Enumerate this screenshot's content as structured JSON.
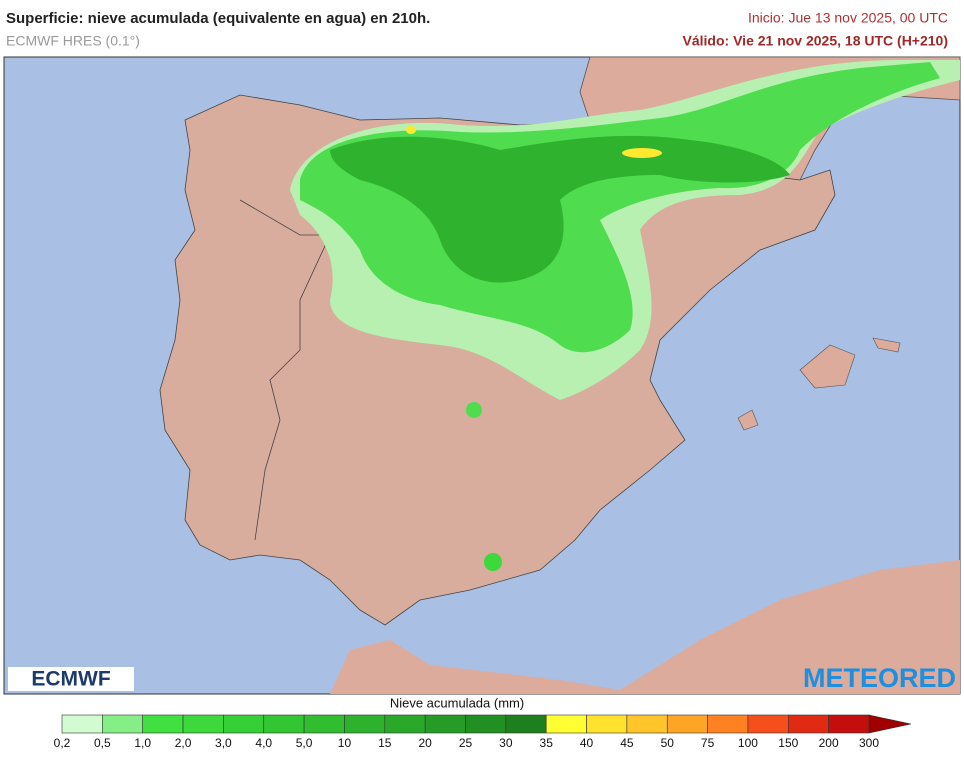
{
  "header": {
    "title": "Superficie: nieve acumulada (equivalente en agua) en 210h.",
    "model": "ECMWF HRES (0.1°)",
    "init": "Inicio: Jue 13 nov 2025, 00 UTC",
    "valid": "Válido: Vie 21 nov 2025, 18 UTC (H+210)"
  },
  "logos": {
    "left": "ECMWF",
    "right": "METEORED"
  },
  "legend": {
    "title": "Nieve acumulada (mm)",
    "ticks": [
      "0,2",
      "0,5",
      "1,0",
      "2,0",
      "3,0",
      "4,0",
      "5,0",
      "10",
      "15",
      "20",
      "25",
      "30",
      "35",
      "40",
      "45",
      "50",
      "75",
      "100",
      "150",
      "200",
      "300"
    ],
    "colors": [
      "#d2fbd2",
      "#86ee86",
      "#3fe03f",
      "#3cd83c",
      "#37cf37",
      "#33c633",
      "#30bd30",
      "#2cb22c",
      "#29a829",
      "#269c26",
      "#228f22",
      "#1d7f1d",
      "#ffff33",
      "#ffe22e",
      "#ffc52a",
      "#ffa526",
      "#ff8122",
      "#f5501c",
      "#e02a14",
      "#c40e0e"
    ],
    "arrow_color": "#a00000"
  }
}
